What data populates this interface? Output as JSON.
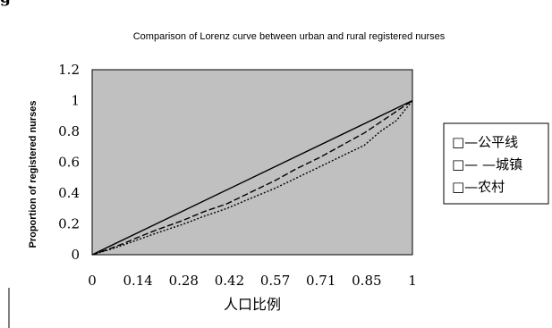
{
  "heading_fragment": "g",
  "chart_data": {
    "type": "line",
    "title": "Comparison of Lorenz curve between urban and rural registered nurses",
    "xlabel": "人口比例",
    "ylabel": "Proportion of registered nurses",
    "x_ticks": [
      "0",
      "0.14",
      "0.28",
      "0.42",
      "0.57",
      "0.71",
      "0.85",
      "1"
    ],
    "y_ticks": [
      "0",
      "0.2",
      "0.4",
      "0.6",
      "0.8",
      "1",
      "1.2"
    ],
    "xlim": [
      0,
      1
    ],
    "ylim": [
      0,
      1.2
    ],
    "grid": false,
    "plot_background": "#c0c0c0",
    "legend_position": "right",
    "series": [
      {
        "name": "公平线",
        "legend_label": "□—公平线",
        "style": "solid",
        "x": [
          0,
          1
        ],
        "y": [
          0,
          1
        ]
      },
      {
        "name": "城镇",
        "legend_label": "□— —城镇",
        "style": "dashed",
        "x": [
          0,
          0.05,
          0.1,
          0.14,
          0.2,
          0.28,
          0.35,
          0.42,
          0.5,
          0.57,
          0.64,
          0.71,
          0.78,
          0.85,
          0.9,
          0.95,
          1
        ],
        "y": [
          0,
          0.035,
          0.075,
          0.11,
          0.16,
          0.22,
          0.28,
          0.33,
          0.41,
          0.48,
          0.56,
          0.63,
          0.71,
          0.79,
          0.86,
          0.93,
          1
        ]
      },
      {
        "name": "农村",
        "legend_label": "□—农村",
        "style": "dotted",
        "x": [
          0,
          0.05,
          0.1,
          0.14,
          0.2,
          0.28,
          0.35,
          0.42,
          0.5,
          0.57,
          0.64,
          0.71,
          0.78,
          0.85,
          0.9,
          0.95,
          1
        ],
        "y": [
          0,
          0.03,
          0.065,
          0.095,
          0.14,
          0.195,
          0.25,
          0.3,
          0.37,
          0.43,
          0.5,
          0.57,
          0.64,
          0.71,
          0.8,
          0.87,
          1
        ]
      }
    ]
  }
}
